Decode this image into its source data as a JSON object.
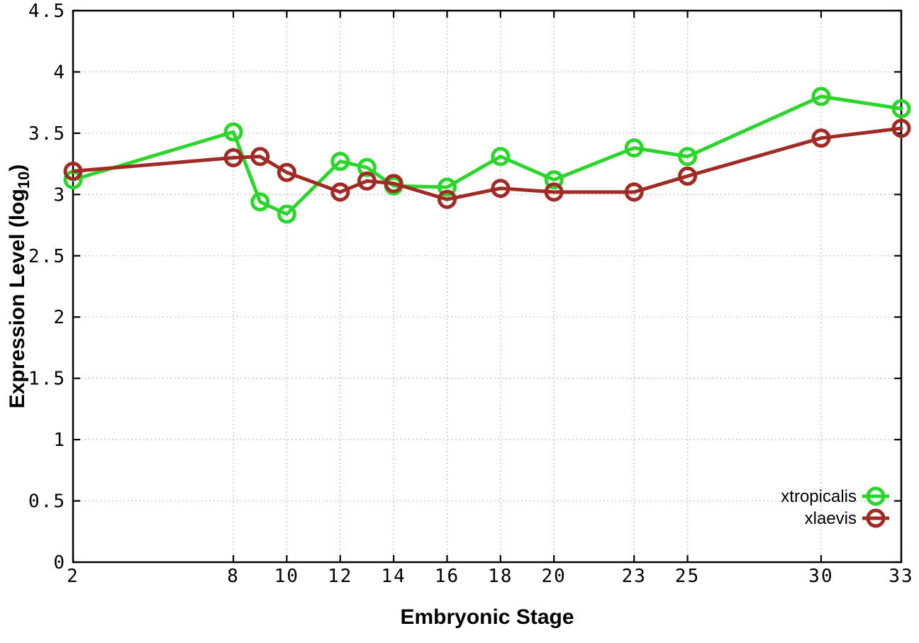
{
  "chart_data": {
    "type": "line",
    "title": "",
    "xlabel": "Embryonic Stage",
    "ylabel": {
      "plain": "Expression Level (log10)",
      "prefix": "Expression Level (log",
      "sub": "10",
      "suffix": ")"
    },
    "x": [
      2,
      8,
      9,
      10,
      12,
      13,
      14,
      16,
      18,
      20,
      23,
      25,
      30,
      33
    ],
    "series": [
      {
        "name": "xtropicalis",
        "color": "#2bd52b",
        "values": [
          3.12,
          3.51,
          2.94,
          2.84,
          3.27,
          3.22,
          3.07,
          3.06,
          3.31,
          3.12,
          3.38,
          3.31,
          3.8,
          3.7
        ]
      },
      {
        "name": "xlaevis",
        "color": "#a02a24",
        "values": [
          3.19,
          3.3,
          3.31,
          3.18,
          3.02,
          3.11,
          3.09,
          2.96,
          3.05,
          3.02,
          3.02,
          3.15,
          3.46,
          3.54
        ]
      }
    ],
    "xlim": [
      2,
      33
    ],
    "ylim": [
      0,
      4.5
    ],
    "xticks": {
      "values": [
        2,
        8,
        10,
        12,
        14,
        16,
        18,
        20,
        23,
        25,
        30,
        33
      ],
      "labels": [
        "2",
        "8",
        "10",
        "12",
        "14",
        "16",
        "18",
        "20",
        "23",
        "25",
        "30",
        "33"
      ]
    },
    "yticks": {
      "values": [
        0,
        0.5,
        1,
        1.5,
        2,
        2.5,
        3,
        3.5,
        4,
        4.5
      ],
      "labels": [
        "0",
        "0.5",
        "1",
        "1.5",
        "2",
        "2.5",
        "3",
        "3.5",
        "4",
        "4.5"
      ]
    },
    "grid": true,
    "grid_x": [
      8,
      10,
      12,
      14,
      16,
      18,
      20,
      23,
      25,
      30
    ],
    "grid_y": [
      0.5,
      1,
      1.5,
      2,
      2.5,
      3,
      3.5,
      4
    ],
    "legend_position": "bottom-right",
    "legend_entries": [
      "xtropicalis",
      "xlaevis"
    ],
    "colors": {
      "background": "#ffffff",
      "axis": "#000000",
      "grid": "#b4b4b4",
      "xtropicalis": "#2bd52b",
      "xlaevis": "#a02a24"
    }
  }
}
